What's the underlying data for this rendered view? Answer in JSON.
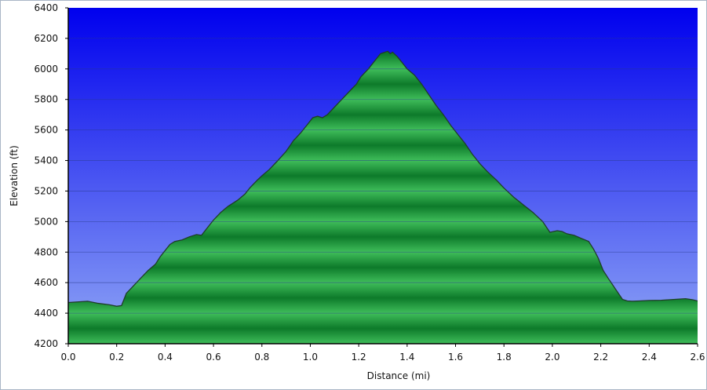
{
  "chart_data": {
    "type": "area",
    "title": "",
    "xlabel": "Distance    (mi)",
    "ylabel": "Elevation  (ft)",
    "xlim": [
      0.0,
      2.6
    ],
    "ylim": [
      4200,
      6400
    ],
    "x_ticks": [
      0.0,
      0.2,
      0.4,
      0.6,
      0.8,
      1.0,
      1.2,
      1.4,
      1.6,
      1.8,
      2.0,
      2.2,
      2.4,
      2.6
    ],
    "x_tick_labels": [
      "0.0",
      "0.2",
      "0.4",
      "0.6",
      "0.8",
      "1.0",
      "1.2",
      "1.4",
      "1.6",
      "1.8",
      "2.0",
      "2.2",
      "2.4",
      "2.6"
    ],
    "y_ticks": [
      4200,
      4400,
      4600,
      4800,
      5000,
      5200,
      5400,
      5600,
      5800,
      6000,
      6200,
      6400
    ],
    "y_tick_labels": [
      "4200",
      "4400",
      "4600",
      "4800",
      "5000",
      "5200",
      "5400",
      "5600",
      "5800",
      "6000",
      "6200",
      "6400"
    ],
    "grid": true,
    "legend": "none",
    "colors": {
      "sky_top": "#0000ee",
      "sky_bottom": "#8fa6f5",
      "fill_light": "#3fbd5a",
      "fill_dark": "#0d7a2a",
      "outline": "#1f3d28",
      "gridline": "#2a3a8a"
    },
    "series": [
      {
        "x": [
          0.0,
          0.05,
          0.08,
          0.12,
          0.17,
          0.2,
          0.22,
          0.24,
          0.27,
          0.3,
          0.33,
          0.36,
          0.38,
          0.4,
          0.42,
          0.44,
          0.47,
          0.5,
          0.53,
          0.55,
          0.57,
          0.6,
          0.63,
          0.66,
          0.7,
          0.73,
          0.75,
          0.78,
          0.8,
          0.83,
          0.86,
          0.9,
          0.93,
          0.96,
          0.99,
          1.01,
          1.03,
          1.05,
          1.07,
          1.1,
          1.13,
          1.16,
          1.19,
          1.21,
          1.24,
          1.27,
          1.29,
          1.3,
          1.32,
          1.33,
          1.34,
          1.36,
          1.38,
          1.4,
          1.43,
          1.46,
          1.49,
          1.52,
          1.55,
          1.58,
          1.61,
          1.64,
          1.67,
          1.7,
          1.73,
          1.77,
          1.8,
          1.84,
          1.88,
          1.92,
          1.96,
          1.99,
          2.02,
          2.04,
          2.06,
          2.09,
          2.12,
          2.15,
          2.17,
          2.19,
          2.21,
          2.23,
          2.26,
          2.29,
          2.31,
          2.33,
          2.36,
          2.4,
          2.45,
          2.5,
          2.55,
          2.58,
          2.6
        ],
        "y": [
          4470,
          4475,
          4478,
          4465,
          4455,
          4445,
          4450,
          4530,
          4580,
          4630,
          4680,
          4720,
          4770,
          4810,
          4850,
          4870,
          4880,
          4900,
          4915,
          4910,
          4950,
          5010,
          5060,
          5100,
          5140,
          5180,
          5220,
          5270,
          5300,
          5340,
          5390,
          5460,
          5530,
          5580,
          5640,
          5680,
          5690,
          5680,
          5700,
          5750,
          5800,
          5850,
          5900,
          5950,
          6000,
          6060,
          6100,
          6105,
          6115,
          6100,
          6110,
          6080,
          6040,
          6000,
          5960,
          5900,
          5830,
          5760,
          5700,
          5630,
          5570,
          5510,
          5440,
          5380,
          5330,
          5270,
          5220,
          5160,
          5110,
          5060,
          5000,
          4930,
          4940,
          4935,
          4920,
          4910,
          4890,
          4870,
          4820,
          4760,
          4680,
          4630,
          4560,
          4490,
          4480,
          4478,
          4480,
          4483,
          4485,
          4490,
          4495,
          4488,
          4480
        ]
      }
    ]
  }
}
